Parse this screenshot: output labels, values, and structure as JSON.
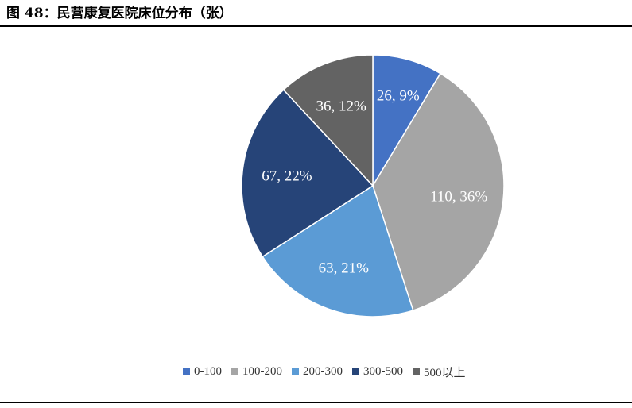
{
  "title": "图 48：民营康复医院床位分布（张）",
  "chart_data": {
    "type": "pie",
    "categories": [
      "0-100",
      "100-200",
      "200-300",
      "300-500",
      "500以上"
    ],
    "values": [
      26,
      110,
      63,
      67,
      36
    ],
    "percents": [
      "9%",
      "36%",
      "21%",
      "22%",
      "12%"
    ],
    "data_labels": [
      "26, 9%",
      "110, 36%",
      "63, 21%",
      "67, 22%",
      "36, 12%"
    ],
    "colors": [
      "#4472c4",
      "#a5a5a5",
      "#5b9bd5",
      "#264478",
      "#636363"
    ],
    "legend_position": "bottom"
  }
}
